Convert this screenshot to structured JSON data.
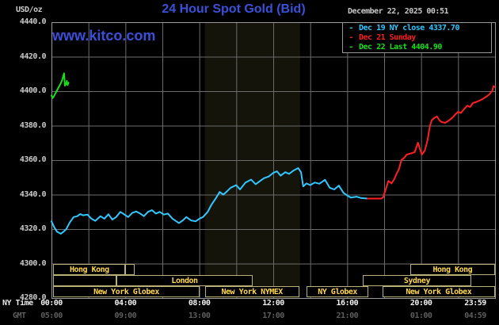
{
  "header": {
    "units": "USD/oz",
    "title": "24 Hour Spot Gold (Bid)",
    "datetime": "December 22, 2025 00:51",
    "watermark": "www.kitco.com"
  },
  "legend": {
    "items": [
      {
        "dash": "-",
        "label": "Dec 19 NY close 4337.70",
        "color": "#2fc8ff"
      },
      {
        "dash": "-",
        "label": "Dec 21 Sunday",
        "color": "#ff1f1f"
      },
      {
        "dash": "-",
        "label": "Dec 22 Last 4404.90",
        "color": "#17e017"
      }
    ]
  },
  "axes": {
    "x": {
      "label_ny": "NY Time",
      "label_gmt": "GMT",
      "range": [
        0,
        24
      ],
      "grid_step_hours": 2,
      "tick_hours": [
        0,
        4,
        8,
        12,
        16,
        20,
        23.983
      ],
      "ny_ticks": [
        "00:00",
        "04:00",
        "08:00",
        "12:00",
        "16:00",
        "20:00",
        "23:59"
      ],
      "gmt_ticks": [
        "05:00",
        "09:00",
        "13:00",
        "17:00",
        "21:00",
        "01:00",
        "04:59"
      ]
    },
    "y": {
      "range": [
        4280,
        4440
      ],
      "grid_step": 20,
      "tick_labels": [
        "4440.0",
        "4420.0",
        "4400.0",
        "4380.0",
        "4360.0",
        "4340.0",
        "4320.0",
        "4300.0",
        "4280.0"
      ]
    }
  },
  "chart_data": {
    "type": "line",
    "title": "24 Hour Spot Gold (Bid)",
    "xlabel": "NY Time (hours)",
    "ylabel": "USD/oz",
    "xlim": [
      0,
      24
    ],
    "ylim": [
      4280,
      4440
    ],
    "grid": true,
    "highlight_band_hours": [
      8.3,
      13.45
    ],
    "colors": {
      "grid": "#6b6b6b",
      "border": "#999999",
      "band": "#14140b",
      "background": "#000000"
    },
    "series": [
      {
        "id": "dec19",
        "name": "Dec 19 NY close 4337.70",
        "color": "#2fc8ff",
        "points": [
          [
            0,
            4324.5
          ],
          [
            0.15,
            4321
          ],
          [
            0.3,
            4318.5
          ],
          [
            0.5,
            4317.3
          ],
          [
            0.65,
            4318.5
          ],
          [
            0.8,
            4320
          ],
          [
            1.0,
            4324
          ],
          [
            1.2,
            4327
          ],
          [
            1.4,
            4327.5
          ],
          [
            1.55,
            4328.7
          ],
          [
            1.7,
            4328
          ],
          [
            1.95,
            4328.4
          ],
          [
            2.16,
            4326
          ],
          [
            2.37,
            4324.8
          ],
          [
            2.65,
            4327.5
          ],
          [
            2.86,
            4326
          ],
          [
            3.08,
            4328.6
          ],
          [
            3.29,
            4325.5
          ],
          [
            3.5,
            4327
          ],
          [
            3.73,
            4330
          ],
          [
            3.94,
            4328.5
          ],
          [
            4.15,
            4327
          ],
          [
            4.37,
            4329.4
          ],
          [
            4.58,
            4330.2
          ],
          [
            4.8,
            4329
          ],
          [
            5.0,
            4327.5
          ],
          [
            5.22,
            4330
          ],
          [
            5.44,
            4331
          ],
          [
            5.65,
            4329
          ],
          [
            5.86,
            4330
          ],
          [
            6.08,
            4328.4
          ],
          [
            6.3,
            4329
          ],
          [
            6.55,
            4326
          ],
          [
            6.9,
            4323.5
          ],
          [
            7.1,
            4325
          ],
          [
            7.3,
            4327
          ],
          [
            7.55,
            4325
          ],
          [
            7.8,
            4324.5
          ],
          [
            8.0,
            4326
          ],
          [
            8.2,
            4327
          ],
          [
            8.45,
            4330
          ],
          [
            8.65,
            4334
          ],
          [
            8.9,
            4338
          ],
          [
            9.1,
            4341.5
          ],
          [
            9.3,
            4340
          ],
          [
            9.5,
            4342
          ],
          [
            9.7,
            4344
          ],
          [
            10.0,
            4345.5
          ],
          [
            10.2,
            4343
          ],
          [
            10.5,
            4347
          ],
          [
            10.8,
            4348.7
          ],
          [
            11.05,
            4346
          ],
          [
            11.3,
            4348
          ],
          [
            11.5,
            4349.5
          ],
          [
            11.75,
            4350.5
          ],
          [
            12.0,
            4352.6
          ],
          [
            12.2,
            4353.5
          ],
          [
            12.4,
            4351
          ],
          [
            12.65,
            4353
          ],
          [
            12.85,
            4352
          ],
          [
            13.1,
            4354
          ],
          [
            13.35,
            4355.4
          ],
          [
            13.5,
            4353
          ],
          [
            13.62,
            4344.8
          ],
          [
            13.8,
            4346.5
          ],
          [
            14.0,
            4345.5
          ],
          [
            14.25,
            4347
          ],
          [
            14.5,
            4346.3
          ],
          [
            14.8,
            4348.6
          ],
          [
            15.05,
            4344
          ],
          [
            15.3,
            4343
          ],
          [
            15.55,
            4345.2
          ],
          [
            15.8,
            4341
          ],
          [
            16.0,
            4339.5
          ],
          [
            16.2,
            4338.3
          ],
          [
            16.5,
            4338.8
          ],
          [
            16.75,
            4338
          ],
          [
            17.1,
            4337.7
          ]
        ]
      },
      {
        "id": "dec21",
        "name": "Dec 21 Sunday",
        "color": "#ff1f1f",
        "points": [
          [
            17.1,
            4337.7
          ],
          [
            17.85,
            4337.7
          ],
          [
            17.95,
            4338.5
          ],
          [
            18.05,
            4342
          ],
          [
            18.23,
            4347.9
          ],
          [
            18.4,
            4346.5
          ],
          [
            18.55,
            4349
          ],
          [
            18.65,
            4351.7
          ],
          [
            18.8,
            4354.8
          ],
          [
            18.94,
            4360.1
          ],
          [
            19.1,
            4361.5
          ],
          [
            19.22,
            4363.2
          ],
          [
            19.45,
            4363.9
          ],
          [
            19.65,
            4364.6
          ],
          [
            19.83,
            4370.1
          ],
          [
            19.95,
            4366
          ],
          [
            20.04,
            4363.2
          ],
          [
            20.2,
            4365.5
          ],
          [
            20.35,
            4371.6
          ],
          [
            20.47,
            4379.3
          ],
          [
            20.57,
            4383.1
          ],
          [
            20.7,
            4384.3
          ],
          [
            20.85,
            4385.4
          ],
          [
            21.0,
            4383
          ],
          [
            21.1,
            4382.1
          ],
          [
            21.3,
            4381.6
          ],
          [
            21.5,
            4383
          ],
          [
            21.7,
            4384.7
          ],
          [
            21.85,
            4386.5
          ],
          [
            22.0,
            4388
          ],
          [
            22.15,
            4387.3
          ],
          [
            22.3,
            4389.3
          ],
          [
            22.5,
            4391.6
          ],
          [
            22.65,
            4390.8
          ],
          [
            22.8,
            4393.1
          ],
          [
            23.0,
            4393.8
          ],
          [
            23.1,
            4394.3
          ],
          [
            23.25,
            4395
          ],
          [
            23.4,
            4395.9
          ],
          [
            23.55,
            4397
          ],
          [
            23.7,
            4398.2
          ],
          [
            23.8,
            4399.5
          ],
          [
            23.85,
            4400.2
          ],
          [
            23.92,
            4403
          ],
          [
            23.98,
            4402.5
          ]
        ]
      },
      {
        "id": "dec22",
        "name": "Dec 22 Last 4404.90",
        "color": "#17e017",
        "points": [
          [
            0,
            4397.5
          ],
          [
            0.07,
            4396
          ],
          [
            0.13,
            4397
          ],
          [
            0.2,
            4398.5
          ],
          [
            0.3,
            4400.5
          ],
          [
            0.4,
            4402.5
          ],
          [
            0.5,
            4404.5
          ],
          [
            0.58,
            4406.5
          ],
          [
            0.68,
            4410.4
          ],
          [
            0.73,
            4403.2
          ],
          [
            0.78,
            4404
          ],
          [
            0.83,
            4406
          ],
          [
            0.87,
            4403.5
          ],
          [
            0.92,
            4404.9
          ]
        ]
      }
    ]
  },
  "sessions": {
    "border_color": "#b9b075",
    "text_color": "#ffd84a",
    "rows": [
      {
        "boxes": [
          {
            "label": "Hong Kong",
            "start": 0.1,
            "end": 4.0
          },
          {
            "label": "",
            "start": 4.0,
            "end": 4.5
          },
          {
            "label": "Hong Kong",
            "start": 19.4,
            "end": 24
          }
        ]
      },
      {
        "boxes": [
          {
            "label": "",
            "start": 0.1,
            "end": 3.5
          },
          {
            "label": "London",
            "start": 3.5,
            "end": 10.9
          },
          {
            "label": "Sydney",
            "start": 16.85,
            "end": 22.7
          }
        ]
      },
      {
        "boxes": [
          {
            "label": "New York Globex",
            "start": 0.1,
            "end": 8.0
          },
          {
            "label": "New York NYMEX",
            "start": 8.3,
            "end": 13.4
          },
          {
            "label": "NY Globex",
            "start": 13.8,
            "end": 17.15
          },
          {
            "label": "New York Globex",
            "start": 17.9,
            "end": 24
          }
        ]
      }
    ]
  }
}
